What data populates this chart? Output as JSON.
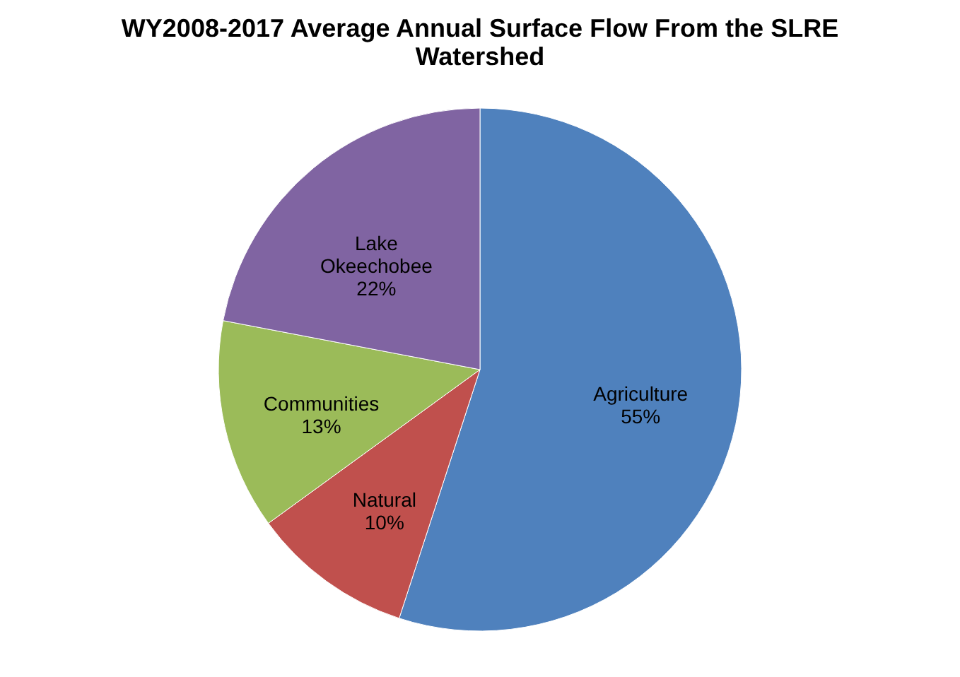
{
  "chart_data": {
    "type": "pie",
    "title": "WY2008-2017 Average Annual Surface Flow From the SLRE Watershed",
    "categories": [
      "Agriculture",
      "Natural",
      "Communities",
      "Lake Okeechobee"
    ],
    "values": [
      55,
      10,
      13,
      22
    ],
    "value_labels": [
      "55%",
      "10%",
      "13%",
      "22%"
    ],
    "colors": [
      "#4f81bd",
      "#c0504d",
      "#9bbb59",
      "#8064a2"
    ],
    "legend": false
  }
}
